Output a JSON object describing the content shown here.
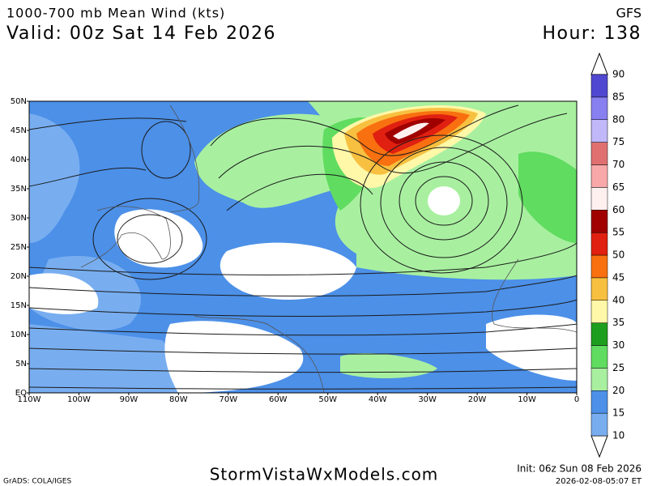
{
  "header": {
    "title": "1000-700 mb Mean Wind (kts)",
    "valid": "Valid: 00z Sat 14 Feb 2026",
    "model": "GFS",
    "hour": "Hour: 138"
  },
  "map": {
    "lat_labels": [
      "50N",
      "45N",
      "40N",
      "35N",
      "30N",
      "25N",
      "20N",
      "15N",
      "10N",
      "5N",
      "EQ"
    ],
    "lon_labels": [
      "110W",
      "100W",
      "90W",
      "80W",
      "70W",
      "60W",
      "50W",
      "40W",
      "30W",
      "20W",
      "10W",
      "0"
    ]
  },
  "colorbar": {
    "levels": [
      10,
      15,
      20,
      25,
      30,
      35,
      40,
      45,
      50,
      55,
      60,
      65,
      70,
      75,
      80,
      85,
      90
    ],
    "colors": [
      "#78aef0",
      "#4c90e8",
      "#a8f0a0",
      "#60dc60",
      "#1e9e1e",
      "#fff8a8",
      "#f8c040",
      "#f87010",
      "#e02010",
      "#a00000",
      "#fff0f0",
      "#f8a8a8",
      "#e07070",
      "#c0b8f8",
      "#8880f0",
      "#5048d0"
    ]
  },
  "footer": {
    "site": "StormVistaWxModels.com",
    "credit": "GrADS: COLA/IGES",
    "init": "Init: 06z Sun 08 Feb 2026",
    "timestamp": "2026-02-08-05:07 ET"
  }
}
